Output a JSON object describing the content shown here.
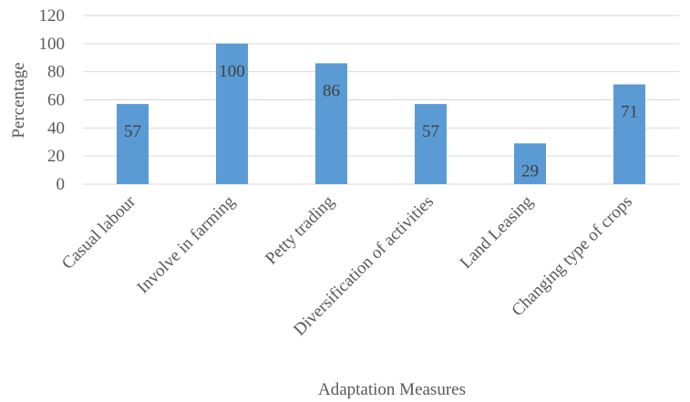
{
  "chart_data": {
    "type": "bar",
    "categories": [
      "Casual labour",
      "Involve in farming",
      "Petty trading",
      "Diversification of activities",
      "Land Leasing",
      "Changing type of crops"
    ],
    "values": [
      57,
      100,
      86,
      57,
      29,
      71
    ],
    "data_labels": [
      "57",
      "100",
      "86",
      "57",
      "29",
      "71"
    ],
    "xlabel": "Adaptation Measures",
    "ylabel": "Percentage",
    "ylim": [
      0,
      120
    ],
    "yticks": [
      0,
      20,
      40,
      60,
      80,
      100,
      120
    ],
    "ytick_labels": [
      "0",
      "20",
      "40",
      "60",
      "80",
      "100",
      "120"
    ],
    "grid": true,
    "legend": "none",
    "bar_color": "#5b9bd5",
    "grid_color": "#d9d9d9"
  }
}
